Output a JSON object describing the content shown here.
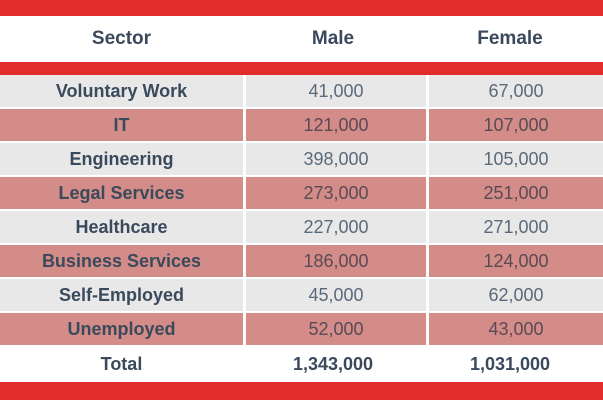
{
  "chart_data": {
    "type": "table",
    "columns": [
      "Sector",
      "Male",
      "Female"
    ],
    "rows": [
      {
        "sector": "Voluntary Work",
        "male": "41,000",
        "female": "67,000"
      },
      {
        "sector": "IT",
        "male": "121,000",
        "female": "107,000"
      },
      {
        "sector": "Engineering",
        "male": "398,000",
        "female": "105,000"
      },
      {
        "sector": "Legal Services",
        "male": "273,000",
        "female": "251,000"
      },
      {
        "sector": "Healthcare",
        "male": "227,000",
        "female": "271,000"
      },
      {
        "sector": "Business Services",
        "male": "186,000",
        "female": "124,000"
      },
      {
        "sector": "Self-Employed",
        "male": "45,000",
        "female": "62,000"
      },
      {
        "sector": "Unemployed",
        "male": "52,000",
        "female": "43,000"
      }
    ],
    "total": {
      "label": "Total",
      "male": "1,343,000",
      "female": "1,031,000"
    }
  },
  "colors": {
    "accent_red": "#e22b2b",
    "row_light": "#e8e8e8",
    "row_dark": "#d38c88"
  }
}
